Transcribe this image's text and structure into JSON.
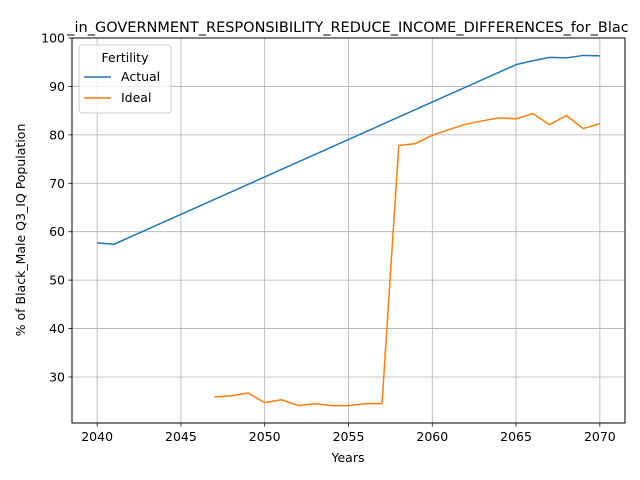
{
  "chart_data": {
    "type": "line",
    "title": "_in_GOVERNMENT_RESPONSIBILITY_REDUCE_INCOME_DIFFERENCES_for_Blac",
    "xlabel": "Years",
    "ylabel": "% of Black_Male Q3_IQ Population",
    "xlim": [
      2038.5,
      2071.5
    ],
    "ylim": [
      20.5,
      100
    ],
    "xticks": [
      2040,
      2045,
      2050,
      2055,
      2060,
      2065,
      2070
    ],
    "yticks": [
      30,
      40,
      50,
      60,
      70,
      80,
      90,
      100
    ],
    "grid": true,
    "legend": {
      "title": "Fertility",
      "placement": "top-left"
    },
    "series": [
      {
        "name": "Actual",
        "color": "#1f77b4",
        "x": [
          2040,
          2041,
          2065,
          2066,
          2067,
          2068,
          2069,
          2070
        ],
        "y": [
          57.7,
          57.4,
          94.5,
          95.3,
          96.0,
          95.9,
          96.4,
          96.3
        ]
      },
      {
        "name": "Ideal",
        "color": "#ff7f0e",
        "x": [
          2047,
          2048,
          2049,
          2050,
          2051,
          2052,
          2053,
          2054,
          2055,
          2056,
          2057,
          2058,
          2059,
          2060,
          2061,
          2062,
          2063,
          2064,
          2065,
          2066,
          2067,
          2068,
          2069,
          2070
        ],
        "y": [
          25.9,
          26.1,
          26.7,
          24.7,
          25.3,
          24.1,
          24.5,
          24.1,
          24.1,
          24.5,
          24.5,
          77.8,
          78.2,
          79.9,
          81.1,
          82.2,
          82.9,
          83.5,
          83.3,
          84.4,
          82.1,
          84.0,
          81.3,
          82.3
        ]
      }
    ]
  }
}
